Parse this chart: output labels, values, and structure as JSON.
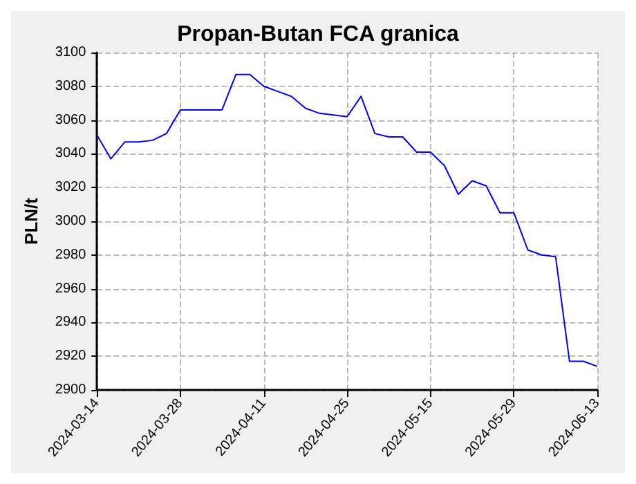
{
  "chart_data": {
    "type": "line",
    "title": "Propan-Butan FCA granica",
    "ylabel": "PLN/t",
    "categories": [
      "2024-03-14",
      null,
      null,
      null,
      null,
      null,
      "2024-03-28",
      null,
      null,
      null,
      null,
      null,
      "2024-04-11",
      null,
      null,
      null,
      null,
      null,
      "2024-04-25",
      null,
      null,
      null,
      null,
      null,
      "2024-05-15",
      null,
      null,
      null,
      null,
      null,
      "2024-05-29",
      null,
      null,
      null,
      null,
      null,
      "2024-06-13"
    ],
    "series": [
      {
        "color": "#0000ff",
        "values": [
          3051,
          3037,
          3047,
          3047,
          3048,
          3052,
          3066,
          3066,
          3066,
          3066,
          3087,
          3087,
          3080,
          3077,
          3074,
          3067,
          3064,
          3063,
          3062,
          3074,
          3052,
          3050,
          3050,
          3041,
          3041,
          3033,
          3016,
          3024,
          3021,
          3005,
          3005,
          2983,
          2980,
          2979,
          2917,
          2917,
          2914
        ]
      }
    ],
    "ylim": [
      2900,
      3100
    ],
    "yticks": [
      2900,
      2920,
      2940,
      2960,
      2980,
      3000,
      3020,
      3040,
      3060,
      3080,
      3100
    ],
    "grid": true,
    "marker": "none",
    "line_style": "solid"
  }
}
